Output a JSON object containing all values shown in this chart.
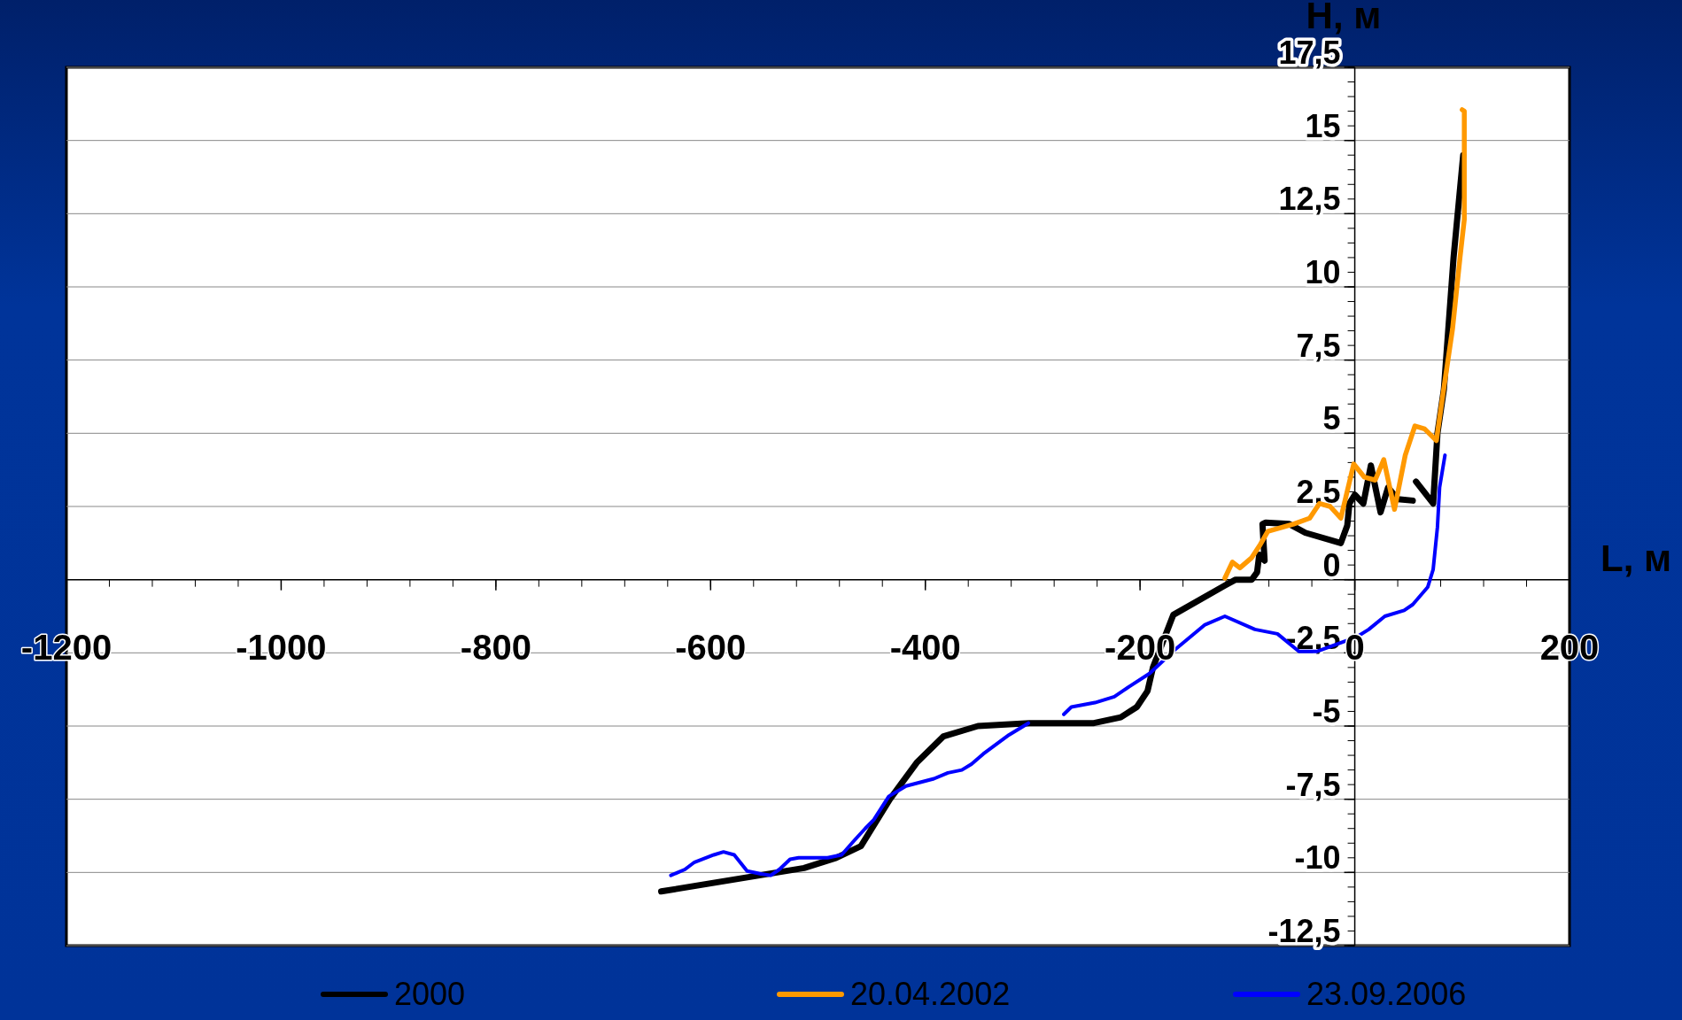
{
  "chart_data": {
    "type": "line",
    "xlabel": "L, м",
    "ylabel": "H, м",
    "xlim": [
      -1200,
      200
    ],
    "ylim": [
      -12.5,
      17.5
    ],
    "xticks": [
      -1200,
      -1000,
      -800,
      -600,
      -400,
      -200,
      0,
      200
    ],
    "yticks": [
      {
        "value": -12.5,
        "label": "-12,5"
      },
      -10,
      {
        "value": -7.5,
        "label": "-7,5"
      },
      -5,
      {
        "value": -2.5,
        "label": "-2,5"
      },
      0,
      {
        "value": 2.5,
        "label": "2,5"
      },
      5,
      {
        "value": 7.5,
        "label": "7,5"
      },
      10,
      {
        "value": 12.5,
        "label": "12,5"
      },
      15,
      {
        "value": 17.5,
        "label": "17,5"
      }
    ],
    "grid": "y",
    "legend": "bottom",
    "series": [
      {
        "name": "2000",
        "color": "#000000",
        "x": [
          -646,
          -513,
          -483,
          -460,
          -433,
          -408,
          -383,
          -351,
          -303,
          -243,
          -218,
          -203,
          -193,
          -188,
          -169,
          -121,
          -111,
          -96,
          -91,
          -89,
          -84,
          -86,
          -83,
          -61,
          -46,
          -13,
          -7,
          -5,
          0,
          8,
          15,
          24,
          31,
          40,
          54,
          55,
          57,
          73,
          77,
          83,
          92,
          101
        ],
        "values": [
          -10.65,
          -9.85,
          -9.5,
          -9.1,
          -7.5,
          -6.25,
          -5.35,
          -5.0,
          -4.9,
          -4.9,
          -4.7,
          -4.35,
          -3.8,
          -3.0,
          -1.2,
          -0.2,
          0,
          0,
          0.25,
          0.85,
          0.65,
          1.9,
          1.95,
          1.9,
          1.6,
          1.25,
          1.85,
          2.6,
          2.9,
          2.6,
          3.9,
          2.3,
          3.15,
          2.75,
          2.7,
          null,
          3.35,
          2.6,
          5.0,
          6.5,
          11,
          14.5
        ]
      },
      {
        "name": "20.04.2002",
        "color": "#ff9900",
        "x": [
          -121,
          -114,
          -107,
          -96,
          -88,
          -81,
          -57,
          -42,
          -33,
          -23,
          -13,
          -1,
          9,
          19,
          27,
          37,
          47,
          56,
          65,
          76,
          81,
          91,
          98,
          102,
          102,
          100
        ],
        "values": [
          0.05,
          0.6,
          0.4,
          0.75,
          1.2,
          1.65,
          1.9,
          2.1,
          2.6,
          2.5,
          2.1,
          3.95,
          3.5,
          3.4,
          4.1,
          2.4,
          4.25,
          5.25,
          5.15,
          4.75,
          6.05,
          8.55,
          11.0,
          12.3,
          16.0,
          16.05
        ]
      },
      {
        "name": "23.09.2006",
        "color": "#0000ff",
        "x": [
          -637,
          -624,
          -615,
          -597,
          -588,
          -578,
          -566,
          -553,
          -544,
          -536,
          -526,
          -518,
          -491,
          -478,
          -466,
          -456,
          -448,
          -434,
          -418,
          -392,
          -379,
          -366,
          -357,
          -346,
          -322,
          -304,
          -290,
          -271,
          -264,
          -242,
          -224,
          -210,
          -191,
          -175,
          -171,
          -140,
          -121,
          -93,
          -72,
          -52,
          -35,
          -9,
          0,
          13,
          28,
          46,
          54,
          68,
          73,
          77,
          79,
          84
        ],
        "values": [
          -10.1,
          -9.9,
          -9.65,
          -9.4,
          -9.3,
          -9.4,
          -9.95,
          -10.05,
          -10.1,
          -9.9,
          -9.55,
          -9.5,
          -9.5,
          -9.4,
          -8.9,
          -8.5,
          -8.2,
          -7.4,
          -7.05,
          -6.8,
          -6.6,
          -6.5,
          -6.3,
          -5.95,
          -5.3,
          -4.9,
          null,
          -4.6,
          -4.35,
          -4.2,
          -4.0,
          -3.65,
          -3.2,
          -2.65,
          -2.5,
          -1.55,
          -1.25,
          -1.7,
          -1.85,
          -2.45,
          -2.45,
          -2.1,
          -2.0,
          -1.7,
          -1.25,
          -1.05,
          -0.85,
          -0.25,
          0.35,
          1.8,
          3.15,
          4.25
        ]
      }
    ]
  }
}
